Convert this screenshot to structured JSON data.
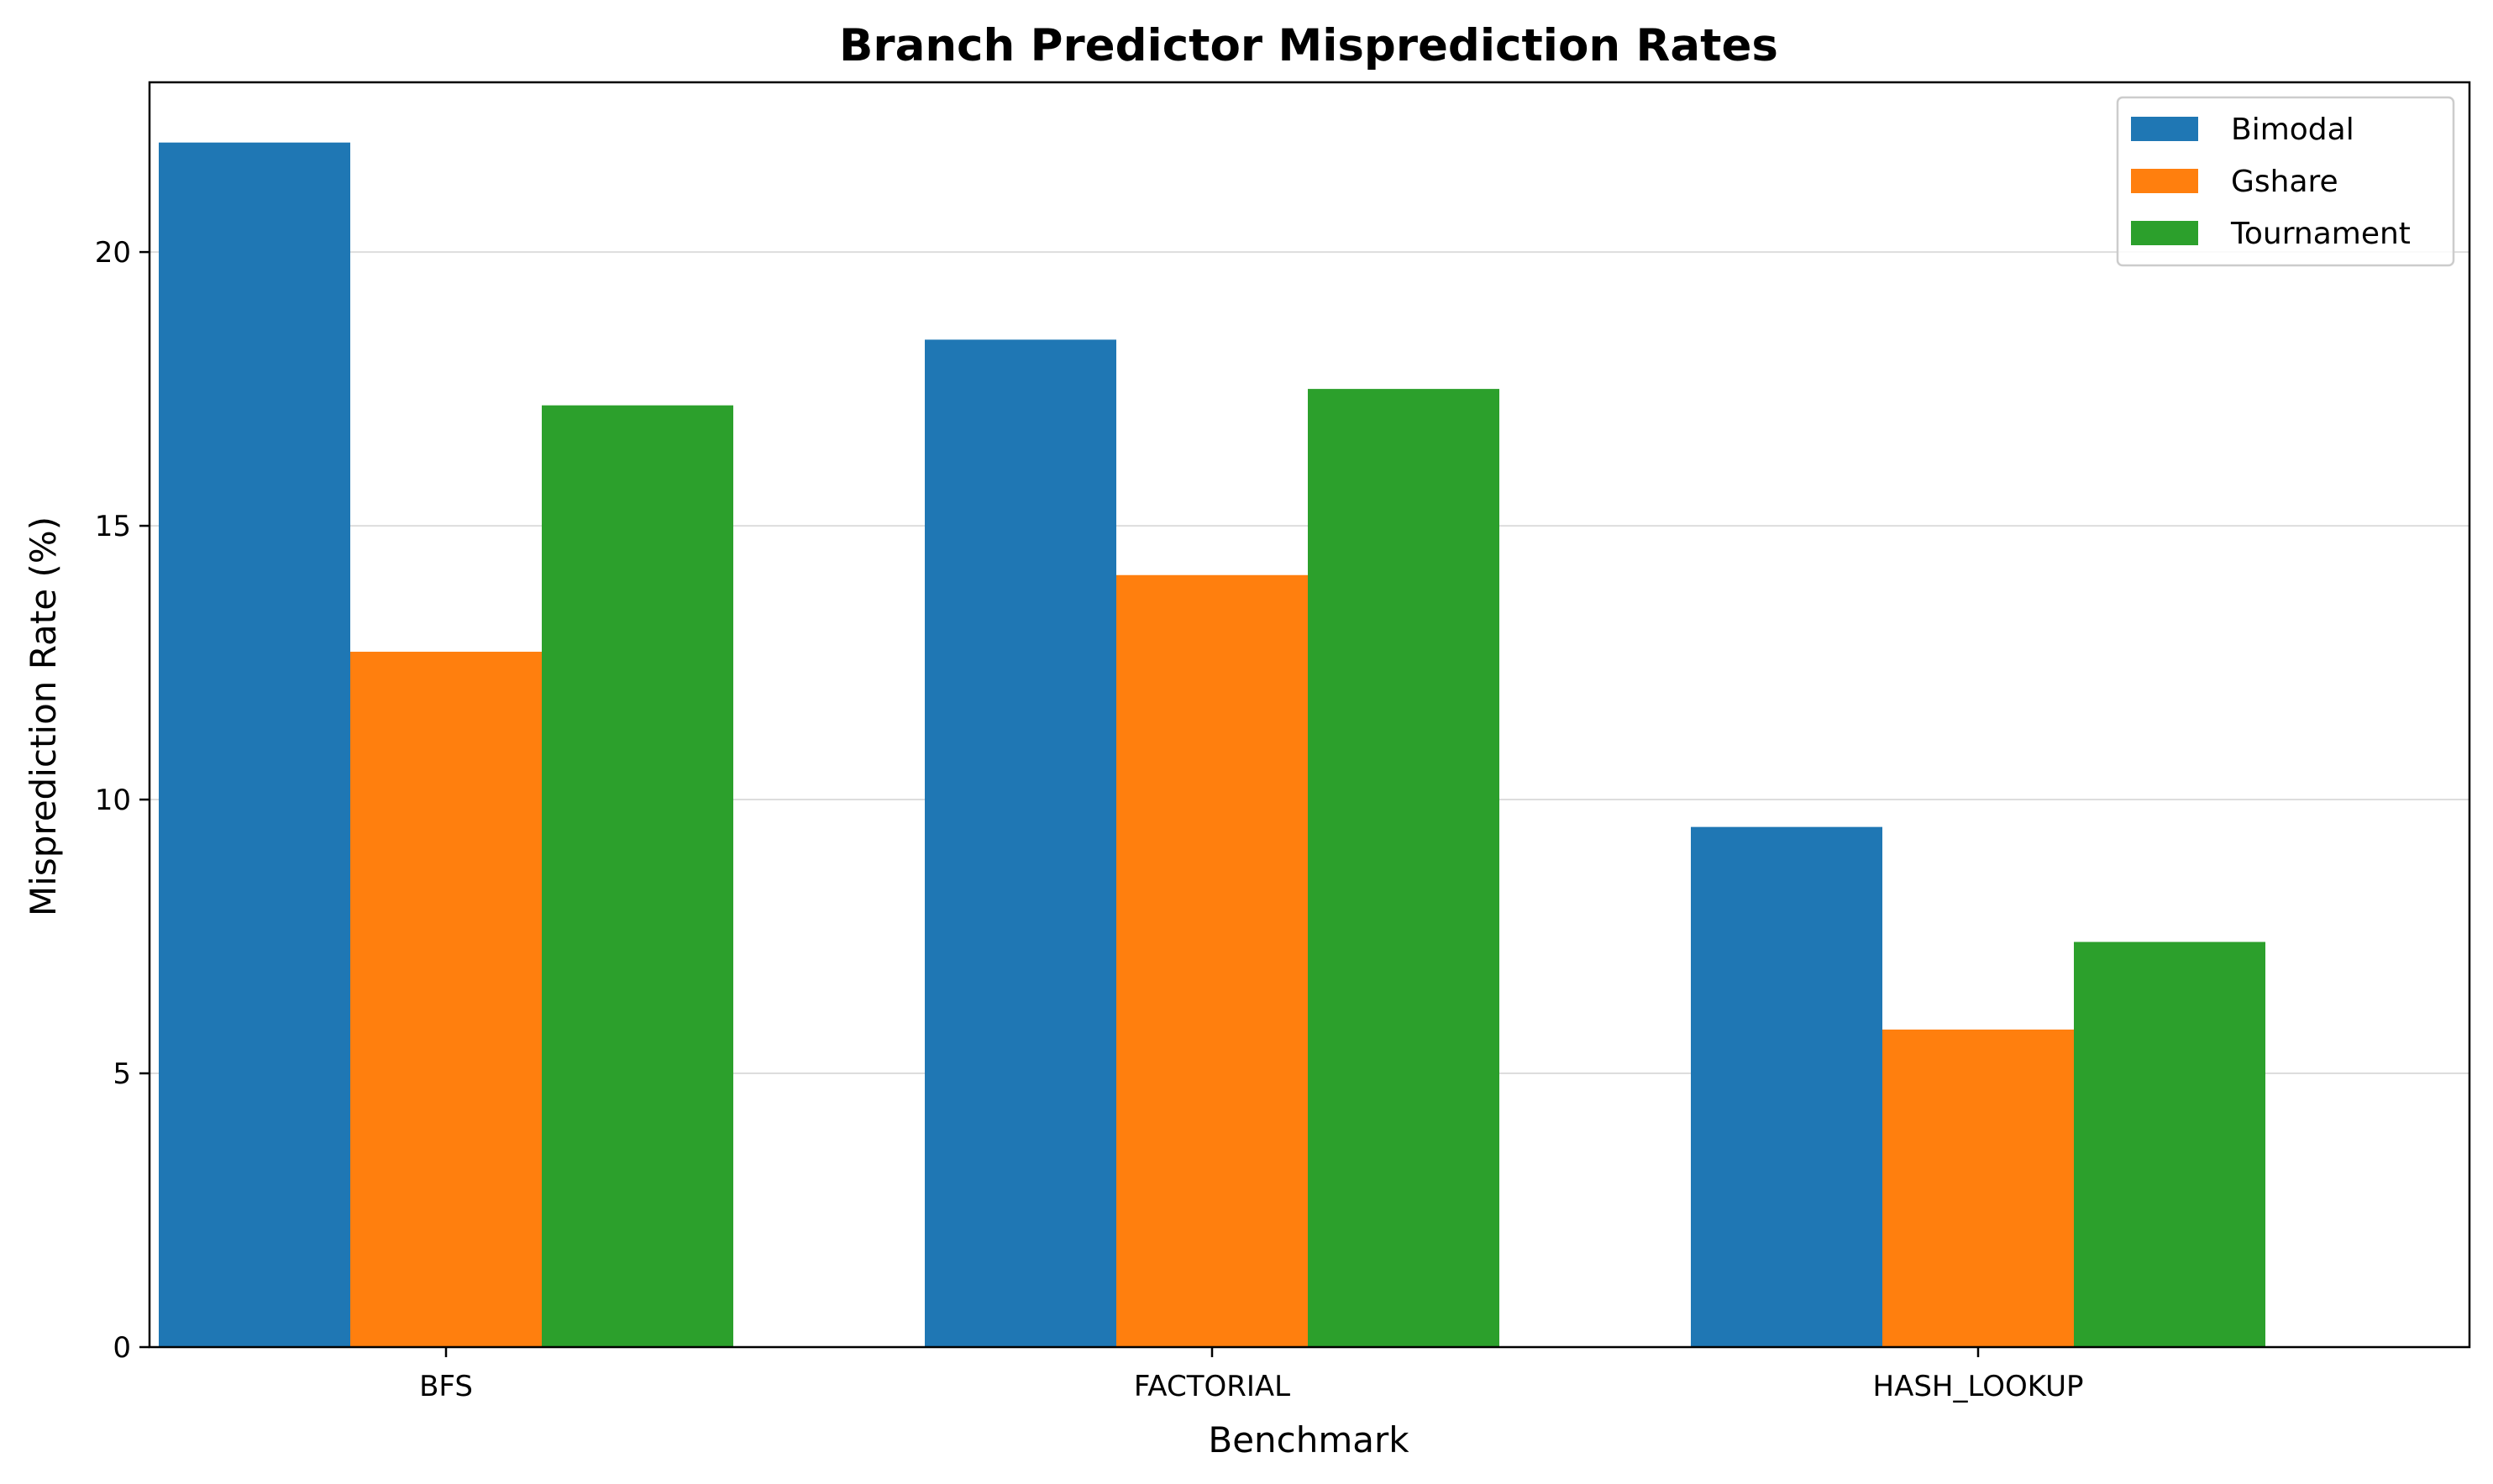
{
  "chart_data": {
    "type": "bar",
    "title": "Branch Predictor Misprediction Rates",
    "xlabel": "Benchmark",
    "ylabel": "Misprediction Rate (%)",
    "categories": [
      "BFS",
      "FACTORIAL",
      "HASH_LOOKUP"
    ],
    "series": [
      {
        "name": "Bimodal",
        "color": "#1f77b4",
        "values": [
          22.0,
          18.4,
          9.5
        ]
      },
      {
        "name": "Gshare",
        "color": "#ff7f0e",
        "values": [
          12.7,
          14.1,
          5.8
        ]
      },
      {
        "name": "Tournament",
        "color": "#2ca02c",
        "values": [
          17.2,
          17.5,
          7.4
        ]
      }
    ],
    "ylim": [
      0,
      23.1
    ],
    "yticks": [
      0,
      5,
      10,
      15,
      20
    ],
    "grid": "y",
    "legend_position": "top-right"
  }
}
